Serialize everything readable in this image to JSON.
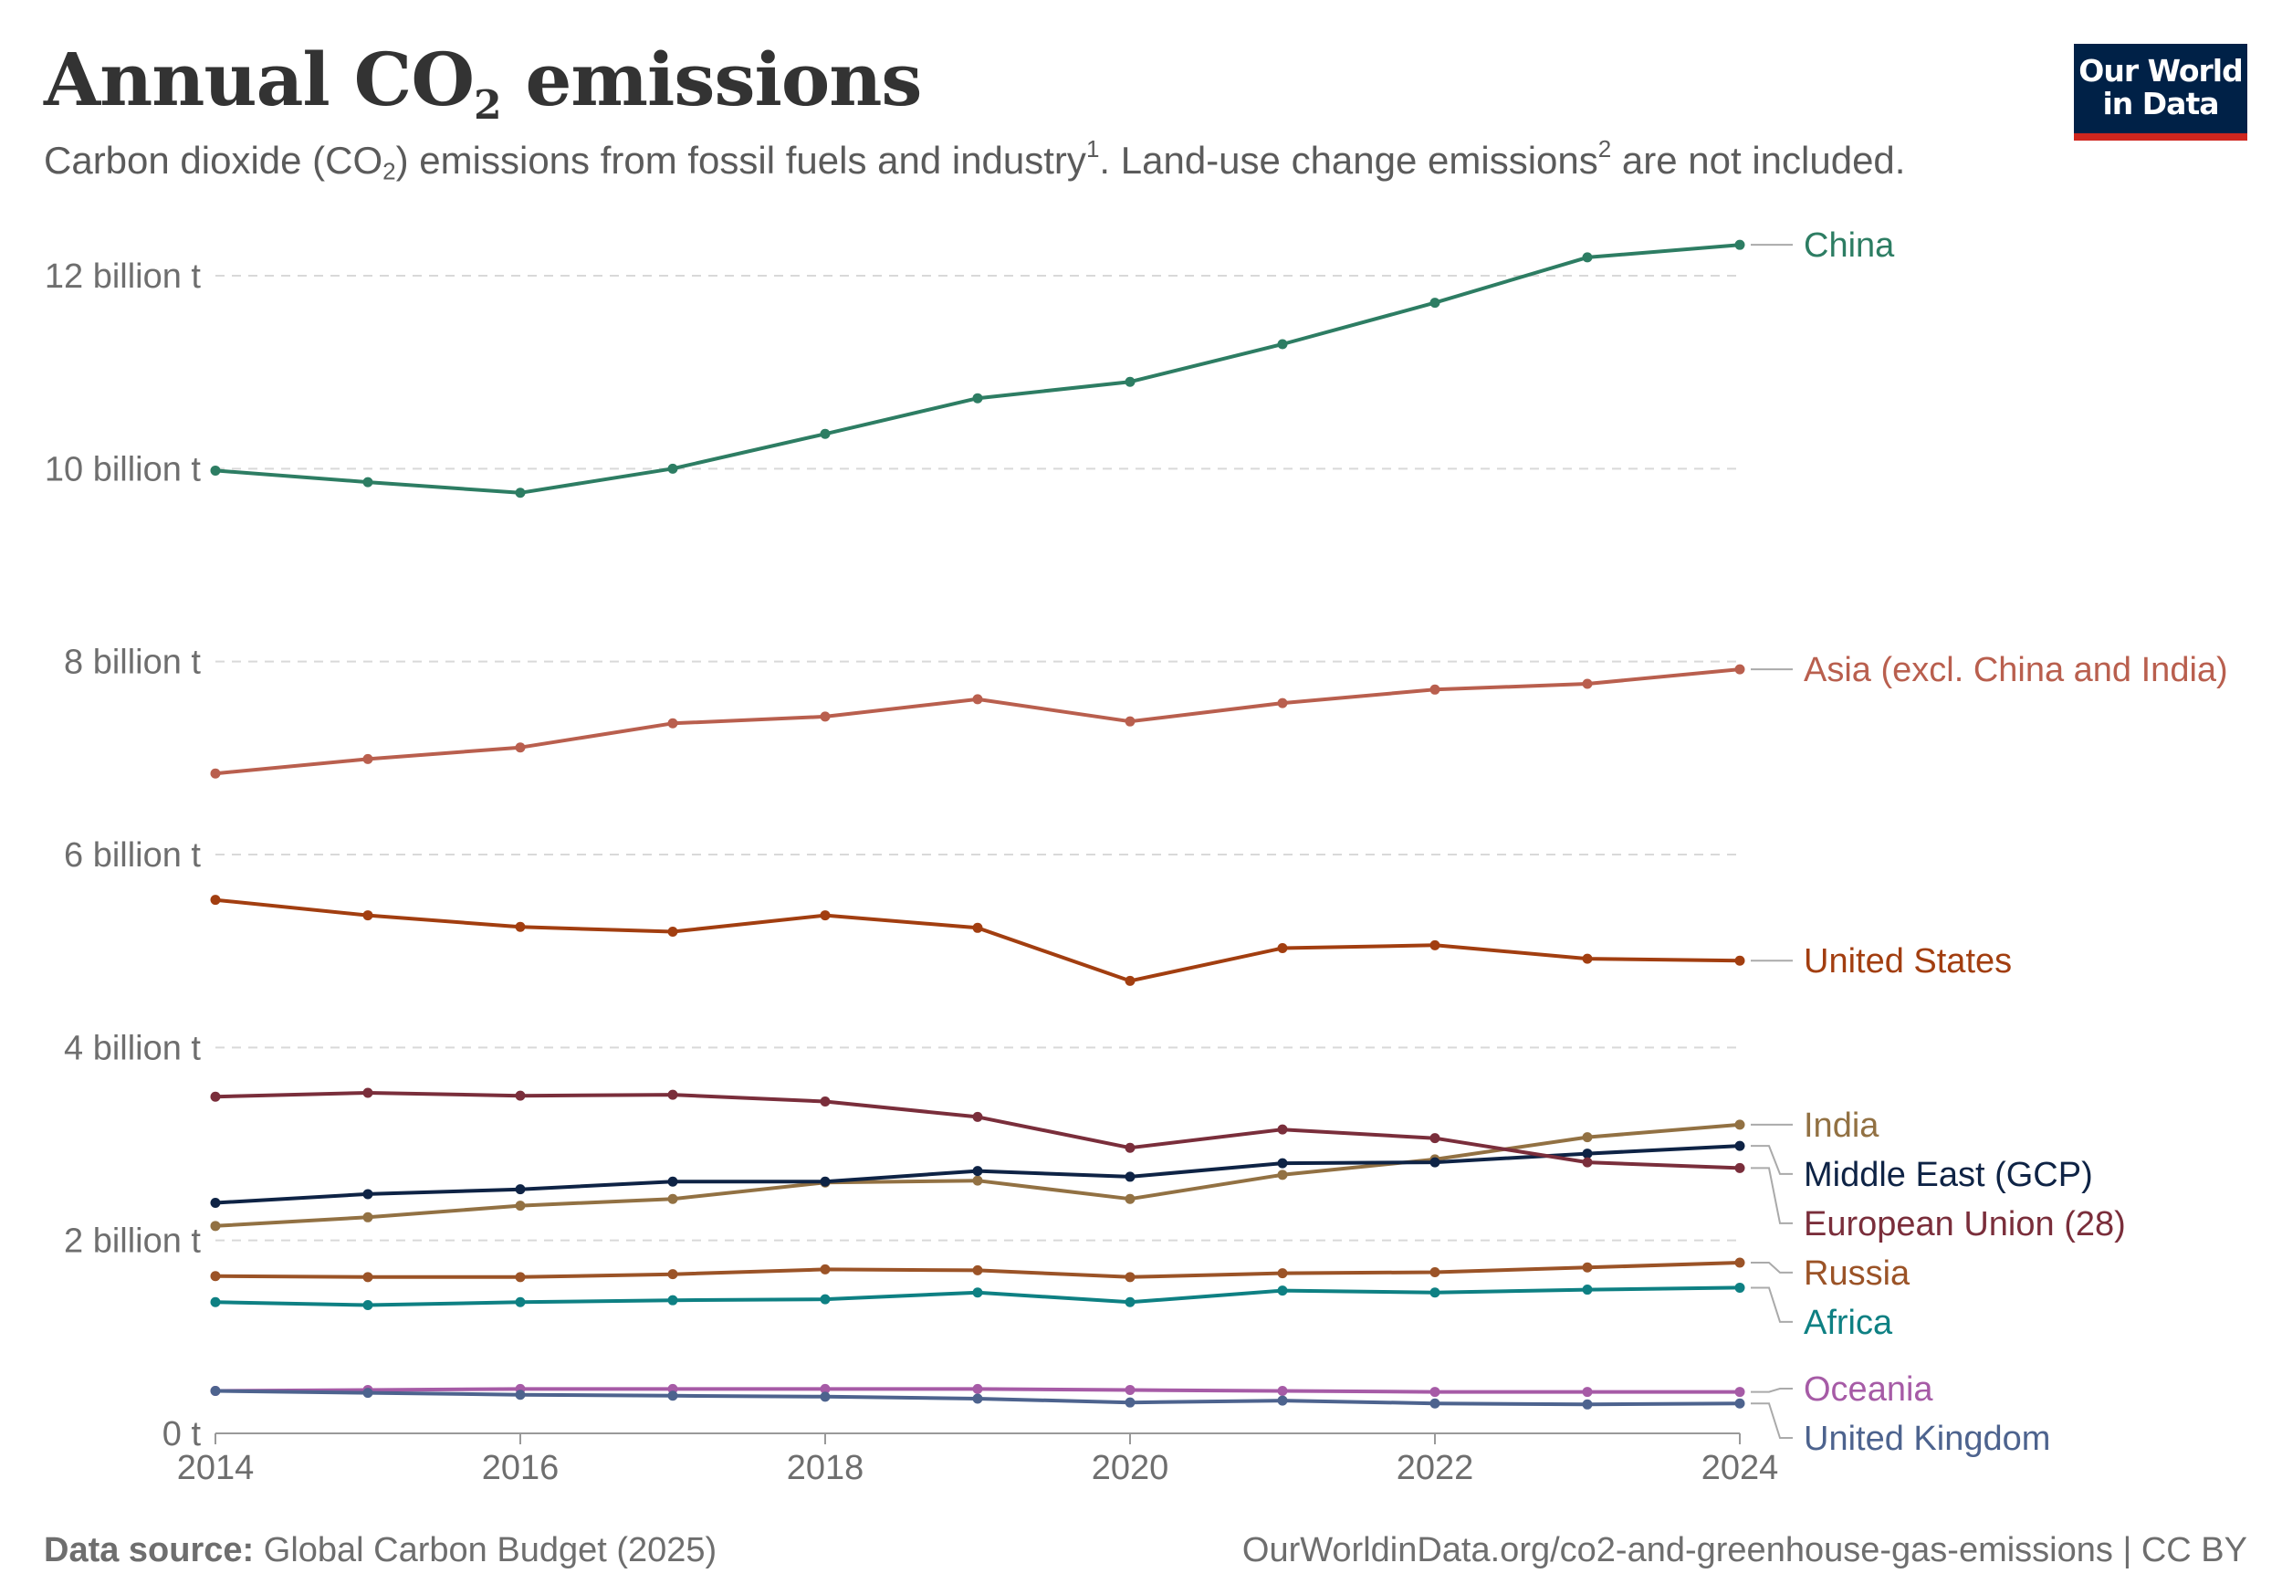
{
  "header": {
    "title_pre": "Annual CO",
    "title_sub": "2",
    "title_post": " emissions",
    "subtitle_a": "Carbon dioxide (CO",
    "subtitle_sub": "2",
    "subtitle_b": ") emissions from fossil fuels and industry",
    "subtitle_sup1": "1",
    "subtitle_c": ". Land-use change emissions",
    "subtitle_sup2": "2",
    "subtitle_d": " are not included."
  },
  "logo": {
    "line1": "Our World",
    "line2": "in Data"
  },
  "footer": {
    "source_label": "Data source:",
    "source_value": " Global Carbon Budget (2025)",
    "url": "OurWorldinData.org/co2-and-greenhouse-gas-emissions | CC BY"
  },
  "chart_data": {
    "type": "line",
    "x": [
      2014,
      2015,
      2016,
      2017,
      2018,
      2019,
      2020,
      2021,
      2022,
      2023,
      2024
    ],
    "xlim": [
      2014,
      2024
    ],
    "ylim": [
      0,
      12
    ],
    "unit": "billion t",
    "grid": "horizontal dashed",
    "legend": "right, labels at line ends",
    "x_ticks": [
      2014,
      2016,
      2018,
      2020,
      2022,
      2024
    ],
    "y_ticks": [
      {
        "value": 0,
        "label": "0 t"
      },
      {
        "value": 2,
        "label": "2 billion t"
      },
      {
        "value": 4,
        "label": "4 billion t"
      },
      {
        "value": 6,
        "label": "6 billion t"
      },
      {
        "value": 8,
        "label": "8 billion t"
      },
      {
        "value": 10,
        "label": "10 billion t"
      },
      {
        "value": 12,
        "label": "12 billion t"
      }
    ],
    "series": [
      {
        "name": "China",
        "color": "#2d7d63",
        "values": [
          9.98,
          9.86,
          9.75,
          10.0,
          10.36,
          10.73,
          10.9,
          11.29,
          11.72,
          12.19,
          12.32
        ]
      },
      {
        "name": "Asia (excl. China and India)",
        "color": "#b95f4e",
        "values": [
          6.84,
          6.99,
          7.11,
          7.36,
          7.43,
          7.61,
          7.38,
          7.57,
          7.71,
          7.77,
          7.92
        ]
      },
      {
        "name": "United States",
        "color": "#a23e10",
        "values": [
          5.53,
          5.37,
          5.25,
          5.2,
          5.37,
          5.24,
          4.69,
          5.03,
          5.06,
          4.92,
          4.9
        ]
      },
      {
        "name": "India",
        "color": "#927143",
        "values": [
          2.15,
          2.24,
          2.36,
          2.43,
          2.6,
          2.62,
          2.43,
          2.68,
          2.84,
          3.07,
          3.2
        ]
      },
      {
        "name": "Middle East (GCP)",
        "color": "#0e2345",
        "values": [
          2.39,
          2.48,
          2.53,
          2.61,
          2.61,
          2.72,
          2.66,
          2.8,
          2.81,
          2.9,
          2.98
        ]
      },
      {
        "name": "European Union (28)",
        "color": "#7a2e3b",
        "values": [
          3.49,
          3.53,
          3.5,
          3.51,
          3.44,
          3.28,
          2.96,
          3.15,
          3.06,
          2.81,
          2.75
        ]
      },
      {
        "name": "Russia",
        "color": "#9b5327",
        "values": [
          1.63,
          1.62,
          1.62,
          1.65,
          1.7,
          1.69,
          1.62,
          1.66,
          1.67,
          1.72,
          1.77
        ]
      },
      {
        "name": "Africa",
        "color": "#0e8083",
        "values": [
          1.36,
          1.33,
          1.36,
          1.38,
          1.39,
          1.46,
          1.36,
          1.48,
          1.46,
          1.49,
          1.51
        ]
      },
      {
        "name": "Oceania",
        "color": "#a65ba6",
        "values": [
          0.44,
          0.45,
          0.46,
          0.46,
          0.46,
          0.46,
          0.45,
          0.44,
          0.43,
          0.43,
          0.43
        ]
      },
      {
        "name": "United Kingdom",
        "color": "#4d638e",
        "values": [
          0.44,
          0.42,
          0.4,
          0.39,
          0.38,
          0.36,
          0.32,
          0.34,
          0.31,
          0.3,
          0.31
        ]
      }
    ]
  }
}
